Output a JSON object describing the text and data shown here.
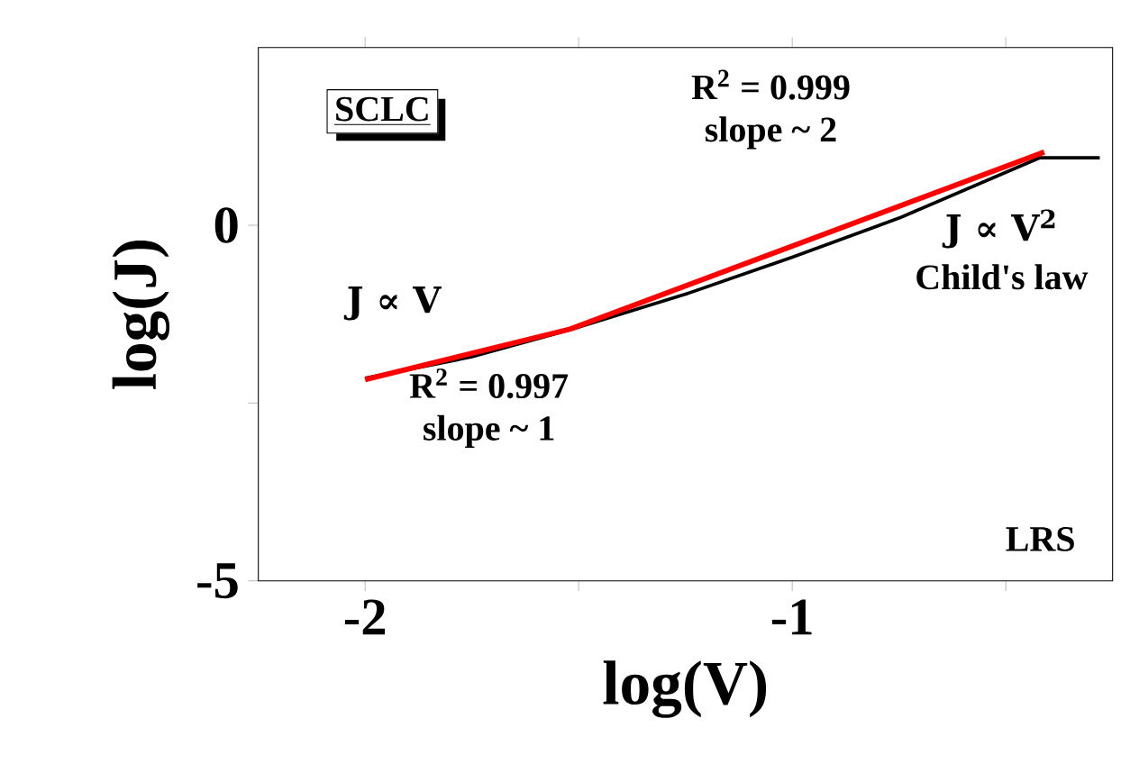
{
  "chart_data": {
    "type": "line",
    "xlabel": "log(V)",
    "ylabel": "log(J)",
    "xlim": [
      -2.25,
      -0.25
    ],
    "xticks": [
      -2,
      {
        "value": -1.5,
        "label": null
      },
      -1,
      {
        "value": -0.5,
        "label": null
      }
    ],
    "ylim": [
      -5,
      2.5
    ],
    "yticks": [
      -5,
      {
        "value": -2.5,
        "label": null
      },
      0
    ],
    "series": [
      {
        "color": "#000000",
        "x": [
          -2.0,
          -1.75,
          -1.52,
          -1.25,
          -1.0,
          -0.75,
          -0.42,
          -0.28
        ],
        "values": [
          -2.15,
          -1.85,
          -1.47,
          -0.97,
          -0.45,
          0.1,
          0.95,
          0.95
        ]
      },
      {
        "type": "line",
        "color": "#ff0000",
        "x": [
          -2.0,
          -1.52,
          -0.41
        ],
        "values": [
          -2.17,
          -1.46,
          1.03
        ]
      }
    ],
    "annotations": [
      "SCLC",
      "R$^{2}$ = 0.999",
      "slope ~ 2",
      "J ∝  V$^{2}$",
      "Child's law",
      "J ∝  V",
      "R$^{2}$ = 0.997",
      "slope ~ 1",
      "LRS"
    ],
    "marker": "none",
    "line_style": "solid"
  }
}
